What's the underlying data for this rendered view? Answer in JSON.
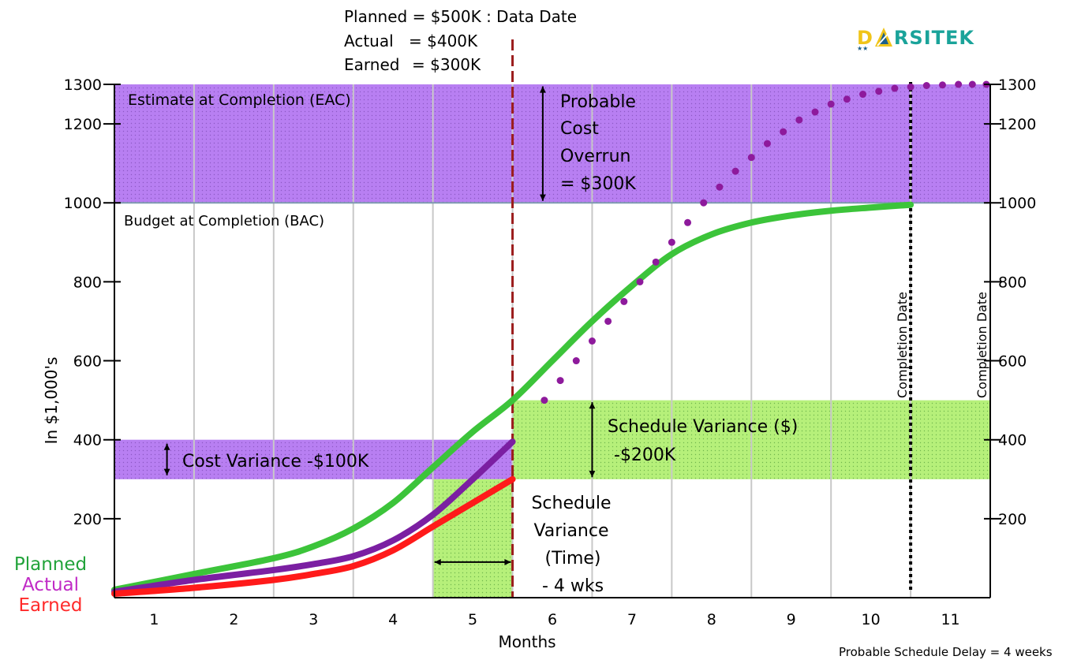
{
  "chart_data": {
    "type": "line",
    "xlabel": "Months",
    "ylabel": "In $1,000's",
    "categories": [
      "1",
      "2",
      "3",
      "4",
      "5",
      "6",
      "7",
      "8",
      "9",
      "10",
      "11"
    ],
    "xlim": [
      0.5,
      11.5
    ],
    "ylim": [
      0,
      1300
    ],
    "left_yticks": [
      200,
      400,
      600,
      800,
      1000,
      1200,
      1300
    ],
    "right_yticks": [
      200,
      400,
      600,
      800,
      1000,
      1200,
      1300
    ],
    "grid": "vertical",
    "series": [
      {
        "name": "Planned",
        "color": "#3cc43a",
        "style": "solid",
        "x": [
          0.5,
          1.5,
          2.5,
          3.0,
          3.5,
          4.0,
          4.5,
          5.0,
          5.5,
          6.0,
          6.5,
          7.0,
          7.5,
          8.0,
          8.5,
          9.0,
          9.5,
          10.0,
          10.5
        ],
        "y": [
          20,
          60,
          100,
          130,
          175,
          240,
          330,
          420,
          500,
          600,
          700,
          790,
          870,
          920,
          950,
          968,
          980,
          988,
          995
        ]
      },
      {
        "name": "Actual",
        "color": "#7b1fa2",
        "style": "solid",
        "x": [
          0.5,
          1.5,
          2.5,
          3.0,
          3.5,
          4.0,
          4.5,
          5.0,
          5.5
        ],
        "y": [
          15,
          45,
          70,
          85,
          105,
          145,
          210,
          300,
          395
        ]
      },
      {
        "name": "Earned",
        "color": "#ff1a1a",
        "style": "solid",
        "x": [
          0.5,
          1.5,
          2.5,
          3.0,
          3.5,
          4.0,
          4.5,
          5.0,
          5.5
        ],
        "y": [
          10,
          25,
          45,
          60,
          80,
          120,
          180,
          240,
          300
        ]
      },
      {
        "name": "EAC projection",
        "color": "#8e1a9c",
        "style": "dotted",
        "x": [
          5.9,
          6.3,
          6.7,
          7.1,
          7.5,
          7.9,
          8.3,
          8.7,
          9.1,
          9.5,
          9.9,
          10.3,
          10.7,
          11.1,
          11.45
        ],
        "y": [
          500,
          600,
          700,
          800,
          900,
          1000,
          1080,
          1150,
          1210,
          1250,
          1275,
          1290,
          1297,
          1300,
          1300
        ]
      }
    ],
    "bands": [
      {
        "label": "Estimate at Completion (EAC)",
        "x": [
          0.5,
          11.5
        ],
        "y": [
          1000,
          1300
        ],
        "color": "#b87ff2"
      },
      {
        "label": "Cost Variance -$100K",
        "x": [
          0.5,
          5.5
        ],
        "y": [
          300,
          400
        ],
        "color": "#b87ff2"
      },
      {
        "label": "Schedule Variance ($)",
        "x": [
          5.5,
          11.5
        ],
        "y": [
          300,
          500
        ],
        "color": "#b6f07a"
      },
      {
        "label": "Schedule Variance (Time)",
        "x": [
          4.5,
          5.5
        ],
        "y": [
          0,
          300
        ],
        "color": "#b6f07a"
      }
    ],
    "reference_lines": [
      {
        "label": "Budget at Completion (BAC)",
        "y": 1000,
        "color": "#7f9cb0"
      },
      {
        "label": "Data Date",
        "x": 5.5,
        "color": "#9b1d1d",
        "style": "dashed"
      },
      {
        "label": "Completion Date",
        "x": 10.5,
        "color": "#000000",
        "style": "dotted"
      }
    ]
  },
  "top_notes": {
    "planned": "Planned = $500K : Data Date",
    "actual_label": "Actual",
    "actual_value": "= $400K",
    "earned_label": "Earned",
    "earned_value": "= $300K"
  },
  "annotations": {
    "eac": "Estimate at Completion (EAC)",
    "bac": "Budget at Completion (BAC)",
    "overrun_1": "Probable",
    "overrun_2": "Cost",
    "overrun_3": "Overrun",
    "overrun_4": "= $300K",
    "cost_variance": "Cost Variance -$100K",
    "sv_dollar_1": "Schedule Variance ($)",
    "sv_dollar_2": "-$200K",
    "sv_time_1": "Schedule",
    "sv_time_2": "Variance",
    "sv_time_3": "(Time)",
    "sv_time_4": "- 4 wks",
    "completion_date": "Completion Date",
    "completion_date_right": "Completion Date",
    "delay": "Probable Schedule Delay = 4 weeks"
  },
  "legend": [
    {
      "label": "Planned",
      "color": "#22a33a"
    },
    {
      "label": "Actual",
      "color": "#c02ac6"
    },
    {
      "label": "Earned",
      "color": "#ff2a2a"
    }
  ],
  "logo": {
    "text_a": "D",
    "text_b": "RSITEK",
    "stars": "★★"
  }
}
